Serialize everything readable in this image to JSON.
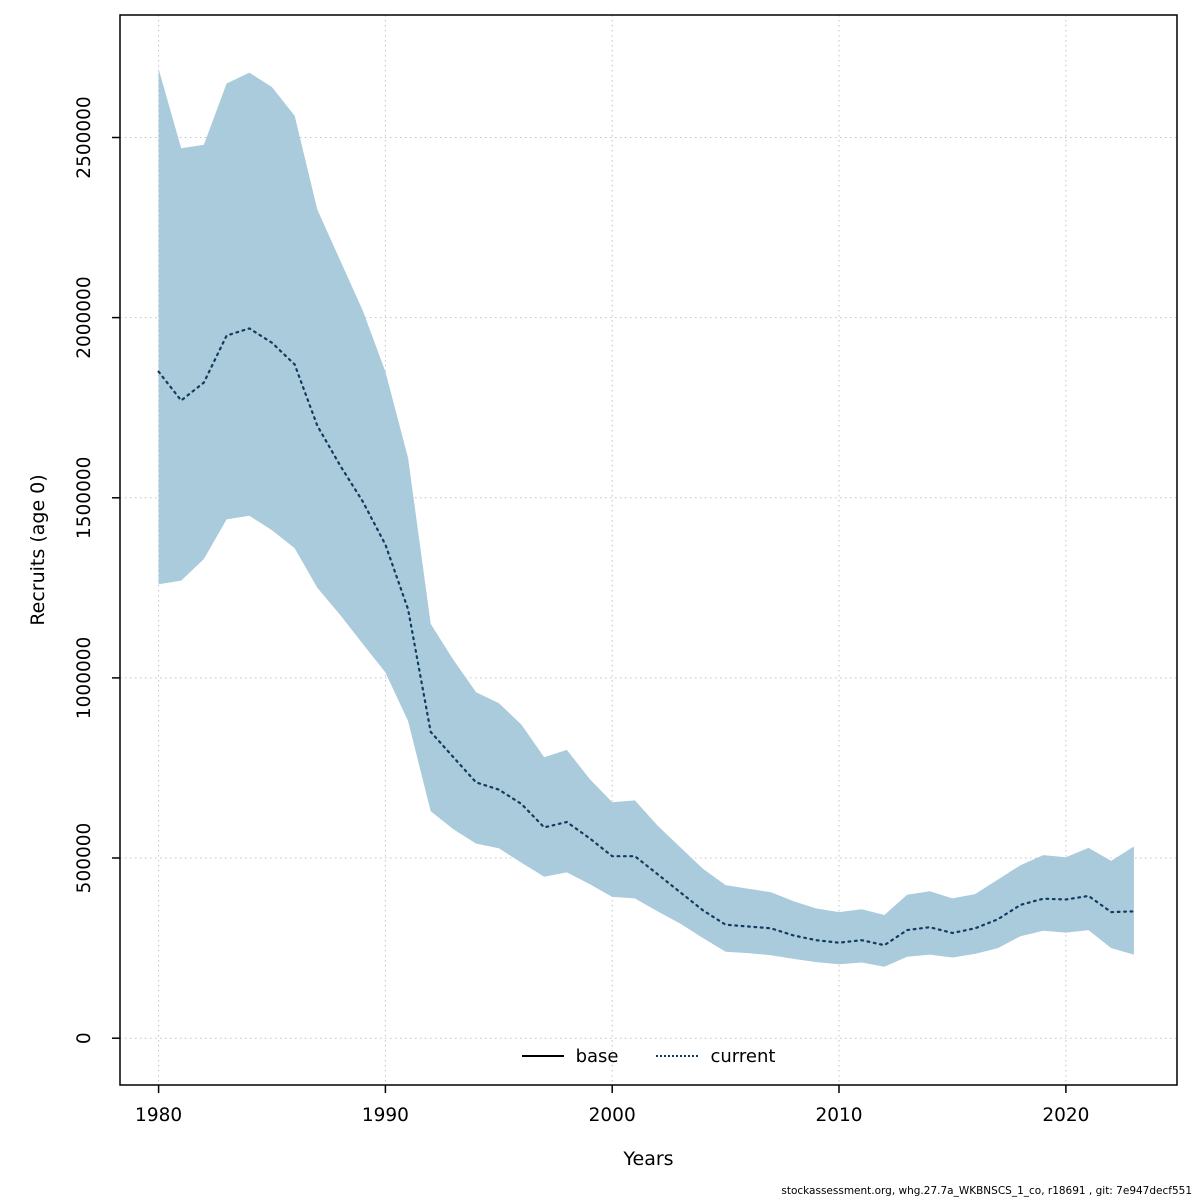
{
  "footer": {
    "text": "stockassessment.org, whg.27.7a_WKBNSCS_1_co, r18691 , git: 7e947decf551"
  },
  "chart_data": {
    "type": "area",
    "title": "",
    "xlabel": "Years",
    "ylabel": "Recruits (age 0)",
    "xlim": [
      1978.3,
      2024.9
    ],
    "ylim": [
      -130000,
      2840000
    ],
    "grid": true,
    "x": [
      1980,
      1981,
      1982,
      1983,
      1984,
      1985,
      1986,
      1987,
      1988,
      1989,
      1990,
      1991,
      1992,
      1993,
      1994,
      1995,
      1996,
      1997,
      1998,
      1999,
      2000,
      2001,
      2002,
      2003,
      2004,
      2005,
      2006,
      2007,
      2008,
      2009,
      2010,
      2011,
      2012,
      2013,
      2014,
      2015,
      2016,
      2017,
      2018,
      2019,
      2020,
      2021,
      2022,
      2023
    ],
    "series": [
      {
        "name": "current",
        "role": "mean",
        "values": [
          1850000,
          1770000,
          1820000,
          1950000,
          1970000,
          1930000,
          1870000,
          1700000,
          1590000,
          1490000,
          1370000,
          1190000,
          850000,
          780000,
          710000,
          690000,
          650000,
          585000,
          600000,
          555000,
          505000,
          505000,
          455000,
          405000,
          355000,
          315000,
          310000,
          305000,
          285000,
          272000,
          265000,
          272000,
          258000,
          300000,
          308000,
          292000,
          305000,
          330000,
          370000,
          387000,
          385000,
          395000,
          350000,
          352000
        ]
      },
      {
        "name": "ci_upper",
        "role": "band_upper",
        "values": [
          2690000,
          2470000,
          2480000,
          2650000,
          2680000,
          2640000,
          2560000,
          2300000,
          2160000,
          2020000,
          1850000,
          1610000,
          1150000,
          1050000,
          960000,
          930000,
          870000,
          780000,
          800000,
          720000,
          655000,
          660000,
          590000,
          530000,
          470000,
          425000,
          415000,
          405000,
          380000,
          360000,
          350000,
          358000,
          342000,
          398000,
          408000,
          388000,
          400000,
          440000,
          480000,
          508000,
          502000,
          528000,
          492000,
          532000
        ]
      },
      {
        "name": "ci_lower",
        "role": "band_lower",
        "values": [
          1260000,
          1270000,
          1330000,
          1440000,
          1450000,
          1410000,
          1360000,
          1250000,
          1175000,
          1095000,
          1015000,
          880000,
          630000,
          580000,
          540000,
          527000,
          487000,
          448000,
          460000,
          428000,
          392000,
          388000,
          352000,
          318000,
          278000,
          240000,
          236000,
          230000,
          220000,
          211000,
          205000,
          210000,
          198000,
          226000,
          232000,
          224000,
          234000,
          250000,
          283000,
          298000,
          293000,
          300000,
          250000,
          232000
        ]
      }
    ],
    "xticks": [
      1980,
      1990,
      2000,
      2010,
      2020
    ],
    "xtick_labels": [
      "1980",
      "1990",
      "2000",
      "2010",
      "2020"
    ],
    "yticks": [
      0,
      500000,
      1000000,
      1500000,
      2000000,
      2500000
    ],
    "ytick_labels": [
      "0",
      "500000",
      "1000000",
      "1500000",
      "2000000",
      "2500000"
    ],
    "legend": {
      "position": "bottom-center-inside",
      "entries": [
        {
          "label": "base",
          "line": "solid",
          "color": "#000000"
        },
        {
          "label": "current",
          "line": "dotted",
          "color": "#123c5e"
        }
      ]
    },
    "colors": {
      "band": "#a9cbdc",
      "current_line": "#123c5e",
      "base_line": "#000000",
      "grid": "#c3c3c3",
      "axis": "#000000",
      "background": "#ffffff"
    }
  }
}
